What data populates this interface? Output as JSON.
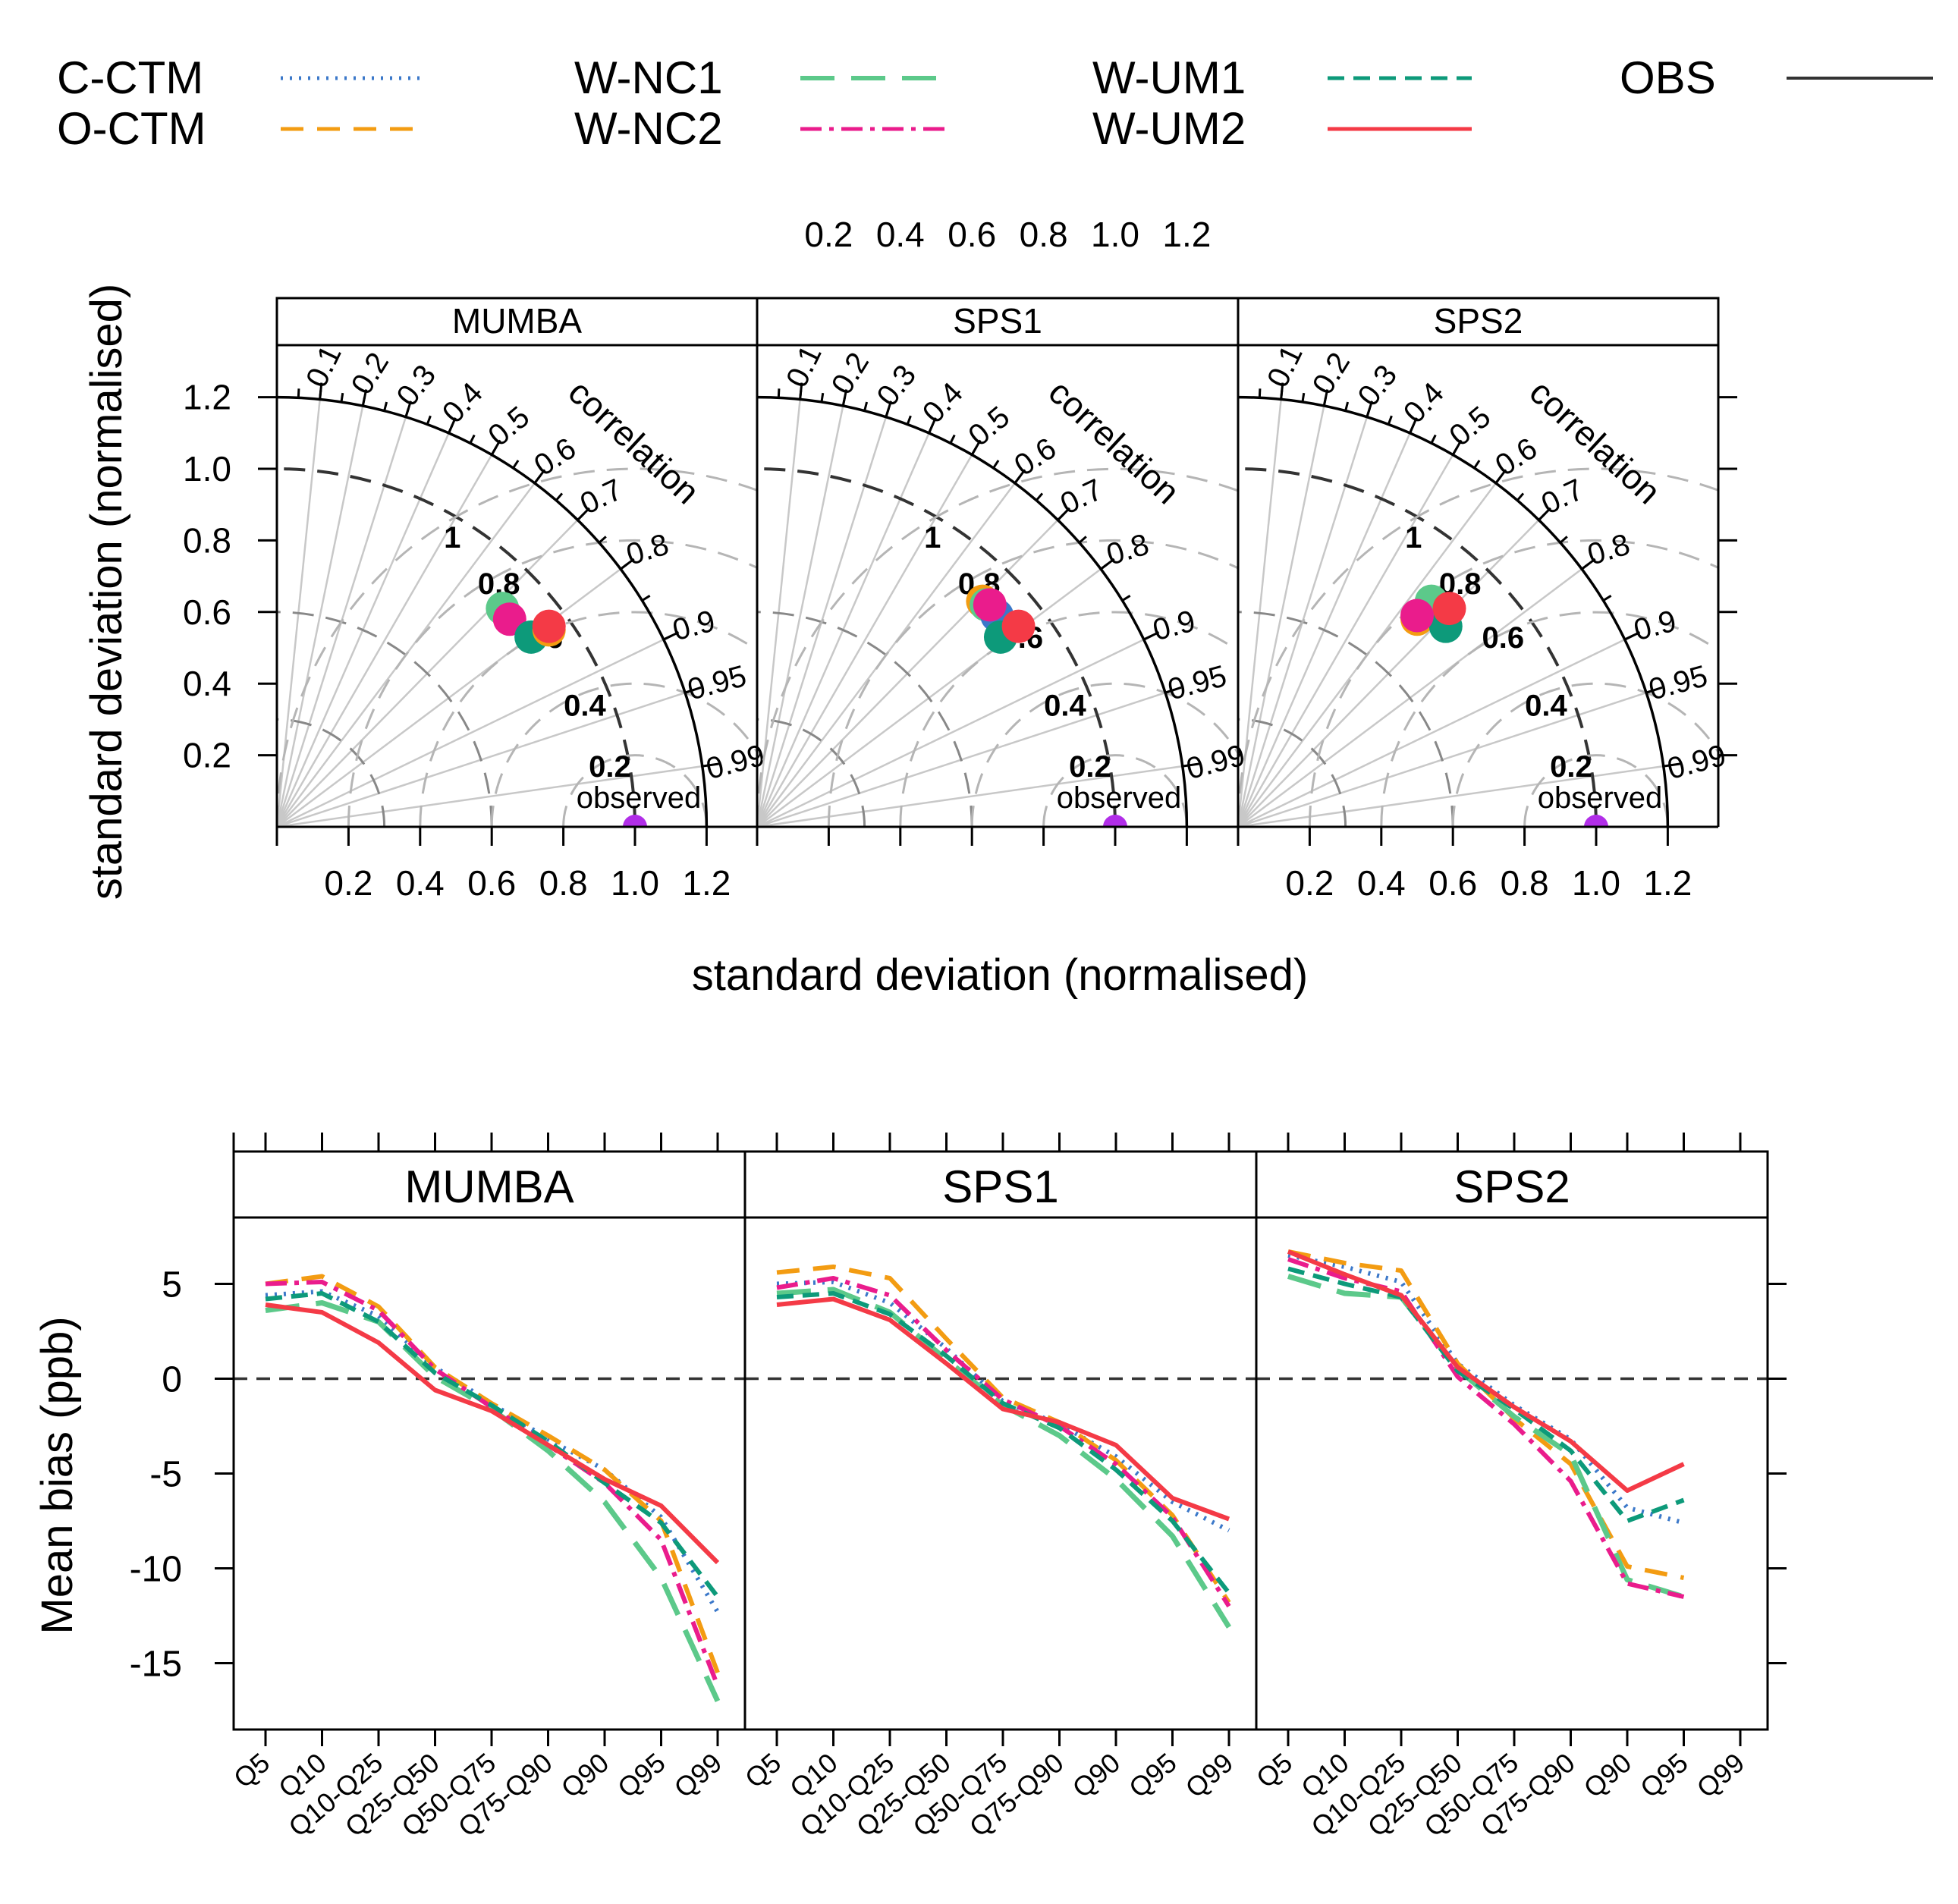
{
  "legend": [
    {
      "name": "C-CTM",
      "color": "#3b78c9",
      "dash": "3 9",
      "width": 5
    },
    {
      "name": "O-CTM",
      "color": "#f39c12",
      "dash": "30 18",
      "width": 5
    },
    {
      "name": "W-NC1",
      "color": "#5cc98a",
      "dash": "45 22",
      "width": 6
    },
    {
      "name": "W-NC2",
      "color": "#ea1c8c",
      "dash": "28 10 6 10",
      "width": 5
    },
    {
      "name": "W-UM1",
      "color": "#0d9a7a",
      "dash": "22 12",
      "width": 5
    },
    {
      "name": "W-UM2",
      "color": "#f43a46",
      "dash": "",
      "width": 5
    },
    {
      "name": "OBS",
      "color": "#333333",
      "dash": "",
      "width": 4
    }
  ],
  "panels": [
    "MUMBA",
    "SPS1",
    "SPS2"
  ],
  "chart_data": [
    {
      "type": "scatter",
      "subtype": "taylor-diagram",
      "xlabel": "standard deviation (normalised)",
      "ylabel": "standard deviation (normalised)",
      "arc_label": "correlation",
      "observed_label": "observed",
      "observed_color": "#b12ee8",
      "axis_ticks": [
        "0.2",
        "0.4",
        "0.6",
        "0.8",
        "1.0",
        "1.2"
      ],
      "top_ticks": [
        "0.2",
        "0.4",
        "0.6",
        "0.8",
        "1.0",
        "1.2"
      ],
      "bottom_tick_panels": [
        "MUMBA",
        "SPS2"
      ],
      "correlation_ticks": [
        "0.1",
        "0.2",
        "0.3",
        "0.4",
        "0.5",
        "0.6",
        "0.7",
        "0.8",
        "0.9",
        "0.95",
        "0.99"
      ],
      "rms_labels": [
        "1",
        "0.8",
        "0.6",
        "0.4",
        "0.2"
      ],
      "xlim": [
        0,
        1.3
      ],
      "ylim": [
        0,
        1.3
      ],
      "points": {
        "MUMBA": [
          {
            "model": "W-NC1",
            "x": 0.63,
            "y": 0.61
          },
          {
            "model": "W-NC2",
            "x": 0.65,
            "y": 0.58
          },
          {
            "model": "W-UM1",
            "x": 0.71,
            "y": 0.53
          },
          {
            "model": "O-CTM",
            "x": 0.76,
            "y": 0.55
          },
          {
            "model": "W-UM2",
            "x": 0.76,
            "y": 0.56
          }
        ],
        "SPS1": [
          {
            "model": "O-CTM",
            "x": 0.63,
            "y": 0.63
          },
          {
            "model": "W-NC1",
            "x": 0.64,
            "y": 0.62
          },
          {
            "model": "C-CTM",
            "x": 0.67,
            "y": 0.59
          },
          {
            "model": "W-UM1",
            "x": 0.68,
            "y": 0.53
          },
          {
            "model": "W-UM2",
            "x": 0.73,
            "y": 0.56
          },
          {
            "model": "W-NC2",
            "x": 0.65,
            "y": 0.62
          }
        ],
        "SPS2": [
          {
            "model": "O-CTM",
            "x": 0.5,
            "y": 0.58
          },
          {
            "model": "W-NC1",
            "x": 0.54,
            "y": 0.63
          },
          {
            "model": "W-UM1",
            "x": 0.58,
            "y": 0.56
          },
          {
            "model": "W-UM2",
            "x": 0.59,
            "y": 0.61
          },
          {
            "model": "W-NC2",
            "x": 0.5,
            "y": 0.59
          }
        ]
      }
    },
    {
      "type": "line",
      "ylabel": "Mean bias (ppb)",
      "xlabel": "",
      "ylim": [
        -18.5,
        8.5
      ],
      "yticks": [
        5,
        0,
        -5,
        -10,
        -15
      ],
      "categories": [
        "Q5",
        "Q10",
        "Q10-Q25",
        "Q25-Q50",
        "Q50-Q75",
        "Q75-Q90",
        "Q90",
        "Q95",
        "Q99"
      ],
      "zero_line": true,
      "series": {
        "MUMBA": [
          {
            "name": "C-CTM",
            "values": [
              4.4,
              4.6,
              3.3,
              0.6,
              -1.3,
              -3.2,
              -4.8,
              -7.3,
              -12.3
            ]
          },
          {
            "name": "O-CTM",
            "values": [
              5.0,
              5.4,
              3.8,
              0.6,
              -1.3,
              -3.0,
              -4.8,
              -7.5,
              -15.5
            ]
          },
          {
            "name": "W-NC1",
            "values": [
              3.6,
              4.0,
              3.0,
              0.1,
              -1.6,
              -3.8,
              -6.5,
              -10.5,
              -17.0
            ]
          },
          {
            "name": "W-NC2",
            "values": [
              5.0,
              5.1,
              3.6,
              0.5,
              -1.5,
              -3.5,
              -5.5,
              -8.5,
              -16.2
            ]
          },
          {
            "name": "W-UM1",
            "values": [
              4.2,
              4.5,
              3.0,
              0.3,
              -1.4,
              -3.3,
              -5.5,
              -7.6,
              -11.5
            ]
          },
          {
            "name": "W-UM2",
            "values": [
              3.9,
              3.5,
              1.9,
              -0.6,
              -1.7,
              -3.5,
              -5.3,
              -6.7,
              -9.7
            ]
          }
        ],
        "SPS1": [
          {
            "name": "C-CTM",
            "values": [
              5.0,
              5.1,
              4.0,
              1.6,
              -1.2,
              -2.4,
              -4.1,
              -6.5,
              -8.0
            ]
          },
          {
            "name": "O-CTM",
            "values": [
              5.6,
              5.9,
              5.3,
              2.1,
              -1.0,
              -2.3,
              -4.3,
              -7.2,
              -11.8
            ]
          },
          {
            "name": "W-NC1",
            "values": [
              4.5,
              4.7,
              3.5,
              1.0,
              -1.4,
              -3.0,
              -5.3,
              -8.3,
              -13.1
            ]
          },
          {
            "name": "W-NC2",
            "values": [
              4.8,
              5.3,
              4.4,
              1.5,
              -1.1,
              -2.5,
              -4.5,
              -7.3,
              -12.0
            ]
          },
          {
            "name": "W-UM1",
            "values": [
              4.3,
              4.5,
              3.4,
              1.2,
              -1.3,
              -2.6,
              -4.8,
              -7.5,
              -11.3
            ]
          },
          {
            "name": "W-UM2",
            "values": [
              3.9,
              4.2,
              3.1,
              0.8,
              -1.6,
              -2.3,
              -3.5,
              -6.3,
              -7.4
            ]
          }
        ],
        "SPS2": [
          {
            "name": "C-CTM",
            "values": [
              6.5,
              5.9,
              5.1,
              0.8,
              -1.4,
              -3.2,
              -6.8,
              -7.6,
              null
            ]
          },
          {
            "name": "O-CTM",
            "values": [
              6.7,
              6.1,
              5.7,
              0.8,
              -2.1,
              -4.5,
              -9.9,
              -10.5,
              null
            ]
          },
          {
            "name": "W-NC1",
            "values": [
              5.4,
              4.5,
              4.3,
              0.5,
              -2.0,
              -4.0,
              -10.6,
              -11.5,
              null
            ]
          },
          {
            "name": "W-NC2",
            "values": [
              6.3,
              5.3,
              4.6,
              0.1,
              -2.4,
              -5.4,
              -10.8,
              -11.5,
              null
            ]
          },
          {
            "name": "W-UM1",
            "values": [
              5.8,
              5.0,
              4.3,
              0.4,
              -1.6,
              -3.8,
              -7.5,
              -6.4,
              null
            ]
          },
          {
            "name": "W-UM2",
            "values": [
              6.7,
              5.5,
              4.4,
              0.6,
              -1.5,
              -3.3,
              -5.9,
              -4.5,
              null
            ]
          }
        ]
      }
    }
  ]
}
